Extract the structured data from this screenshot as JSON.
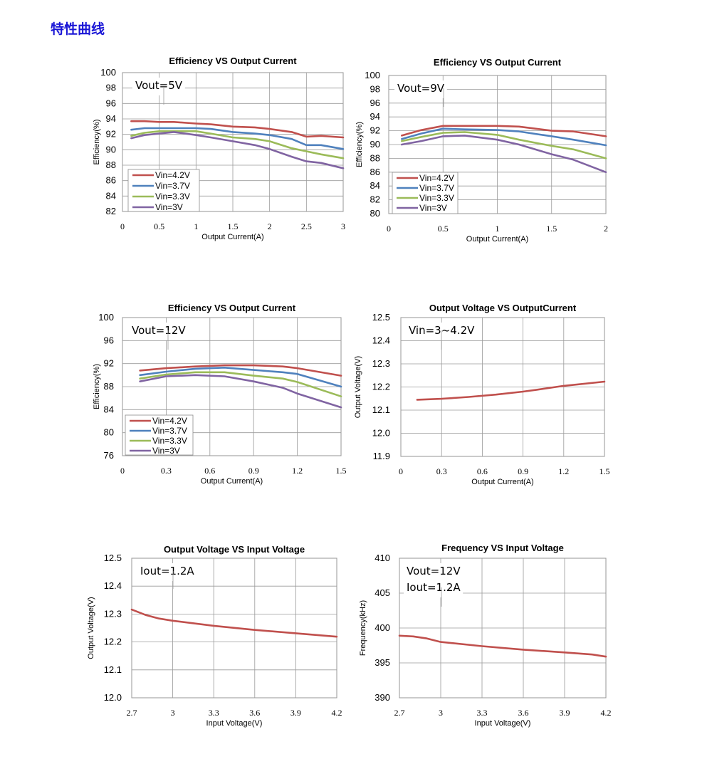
{
  "page": {
    "title": "特性曲线"
  },
  "colors": {
    "Vin=4.2V": "#c0504d",
    "Vin=3.7V": "#4f81bd",
    "Vin=3.3V": "#9bbb59",
    "Vin=3V": "#8064a2",
    "single": "#c0504d"
  },
  "chart_data": [
    {
      "type": "line",
      "title": "Efficiency VS Output Current",
      "xlabel": "Output Current(A)",
      "ylabel": "Efficiency(%)",
      "annotation": [
        "Vout=5V"
      ],
      "xlim": [
        0,
        3
      ],
      "ylim": [
        82,
        100
      ],
      "xticks": [
        0,
        0.5,
        1,
        1.5,
        2,
        2.5,
        3
      ],
      "yticks": [
        82,
        84,
        86,
        88,
        90,
        92,
        94,
        96,
        98,
        100
      ],
      "legend": "bottom-left",
      "series": [
        {
          "name": "Vin=4.2V",
          "x": [
            0.12,
            0.3,
            0.5,
            0.7,
            1.0,
            1.2,
            1.5,
            1.8,
            2.0,
            2.3,
            2.5,
            2.7,
            3.0
          ],
          "y": [
            93.7,
            93.7,
            93.6,
            93.6,
            93.4,
            93.3,
            93.0,
            92.9,
            92.7,
            92.3,
            91.7,
            91.8,
            91.6
          ]
        },
        {
          "name": "Vin=3.7V",
          "x": [
            0.12,
            0.3,
            0.5,
            0.7,
            1.0,
            1.2,
            1.5,
            1.8,
            2.0,
            2.3,
            2.5,
            2.7,
            3.0
          ],
          "y": [
            92.6,
            92.8,
            92.8,
            92.8,
            92.8,
            92.7,
            92.3,
            92.1,
            91.9,
            91.4,
            90.6,
            90.6,
            90.1
          ]
        },
        {
          "name": "Vin=3.3V",
          "x": [
            0.12,
            0.3,
            0.5,
            0.7,
            1.0,
            1.2,
            1.5,
            1.8,
            2.0,
            2.3,
            2.5,
            2.7,
            3.0
          ],
          "y": [
            91.8,
            92.2,
            92.4,
            92.4,
            92.4,
            92.1,
            91.6,
            91.4,
            91.1,
            90.2,
            89.8,
            89.4,
            88.9
          ]
        },
        {
          "name": "Vin=3V",
          "x": [
            0.12,
            0.3,
            0.5,
            0.7,
            1.0,
            1.2,
            1.5,
            1.8,
            2.0,
            2.3,
            2.5,
            2.7,
            3.0
          ],
          "y": [
            91.5,
            91.9,
            92.1,
            92.3,
            91.9,
            91.6,
            91.1,
            90.6,
            90.1,
            89.1,
            88.5,
            88.3,
            87.6
          ]
        }
      ]
    },
    {
      "type": "line",
      "title": "Efficiency VS Output Current",
      "xlabel": "Output Current(A)",
      "ylabel": "Efficiency(%)",
      "annotation": [
        "Vout=9V"
      ],
      "xlim": [
        0,
        2
      ],
      "ylim": [
        80,
        100
      ],
      "xticks": [
        0,
        0.5,
        1,
        1.5,
        2
      ],
      "yticks": [
        80,
        82,
        84,
        86,
        88,
        90,
        92,
        94,
        96,
        98,
        100
      ],
      "legend": "bottom-left",
      "series": [
        {
          "name": "Vin=4.2V",
          "x": [
            0.12,
            0.3,
            0.5,
            0.7,
            1.0,
            1.2,
            1.5,
            1.7,
            2.0
          ],
          "y": [
            91.3,
            92.1,
            92.7,
            92.7,
            92.7,
            92.6,
            92.0,
            91.9,
            91.2
          ]
        },
        {
          "name": "Vin=3.7V",
          "x": [
            0.12,
            0.3,
            0.5,
            0.7,
            1.0,
            1.2,
            1.5,
            1.7,
            2.0
          ],
          "y": [
            90.8,
            91.6,
            92.3,
            92.2,
            92.1,
            91.9,
            91.2,
            90.7,
            89.9
          ]
        },
        {
          "name": "Vin=3.3V",
          "x": [
            0.12,
            0.3,
            0.5,
            0.7,
            1.0,
            1.2,
            1.5,
            1.7,
            2.0
          ],
          "y": [
            90.5,
            91.1,
            91.7,
            91.8,
            91.4,
            90.7,
            89.8,
            89.3,
            88.0
          ]
        },
        {
          "name": "Vin=3V",
          "x": [
            0.12,
            0.3,
            0.5,
            0.7,
            1.0,
            1.2,
            1.5,
            1.7,
            2.0
          ],
          "y": [
            90.0,
            90.5,
            91.2,
            91.3,
            90.7,
            90.0,
            88.6,
            87.8,
            86.0
          ]
        }
      ]
    },
    {
      "type": "line",
      "title": "Efficiency VS Output Current",
      "xlabel": "Output Current(A)",
      "ylabel": "Efficiency(%)",
      "annotation": [
        "Vout=12V"
      ],
      "xlim": [
        0,
        1.5
      ],
      "ylim": [
        76,
        100
      ],
      "xticks": [
        0,
        0.3,
        0.6,
        0.9,
        1.2,
        1.5
      ],
      "xtick_labels": [
        "0",
        "0.3",
        "0.6",
        "0.9",
        "1.2",
        "1.5"
      ],
      "yticks": [
        76,
        80,
        84,
        88,
        92,
        96,
        100
      ],
      "yticks_labels": [
        "76",
        "80",
        "84",
        "88",
        "92",
        "96",
        "100"
      ],
      "legend": "bottom-left",
      "series": [
        {
          "name": "Vin=4.2V",
          "x": [
            0.12,
            0.3,
            0.5,
            0.7,
            0.9,
            1.1,
            1.2,
            1.5
          ],
          "y": [
            90.8,
            91.2,
            91.5,
            91.7,
            91.7,
            91.5,
            91.2,
            89.9
          ]
        },
        {
          "name": "Vin=3.7V",
          "x": [
            0.12,
            0.3,
            0.5,
            0.7,
            0.9,
            1.1,
            1.2,
            1.5
          ],
          "y": [
            90.0,
            90.6,
            91.1,
            91.3,
            90.9,
            90.5,
            90.2,
            88.0
          ]
        },
        {
          "name": "Vin=3.3V",
          "x": [
            0.12,
            0.3,
            0.5,
            0.7,
            0.9,
            1.1,
            1.2,
            1.5
          ],
          "y": [
            89.4,
            90.1,
            90.5,
            90.5,
            89.9,
            89.4,
            88.8,
            86.3
          ]
        },
        {
          "name": "Vin=3V",
          "x": [
            0.12,
            0.3,
            0.5,
            0.7,
            0.9,
            1.1,
            1.2,
            1.5
          ],
          "y": [
            88.9,
            89.8,
            90.0,
            89.8,
            88.9,
            87.8,
            86.8,
            84.4
          ]
        }
      ]
    },
    {
      "type": "line",
      "title": "Output Voltage VS OutputCurrent",
      "xlabel": "Output Current(A)",
      "ylabel": "Output Voltage(V)",
      "annotation": [
        "Vin=3~4.2V"
      ],
      "xlim": [
        0,
        1.5
      ],
      "ylim": [
        11.9,
        12.5
      ],
      "xticks": [
        0,
        0.3,
        0.6,
        0.9,
        1.2,
        1.5
      ],
      "yticks": [
        11.9,
        12.0,
        12.1,
        12.2,
        12.3,
        12.4,
        12.5
      ],
      "xtick_labels": [
        "0",
        "0.3",
        "0.6",
        "0.9",
        "1.2",
        "1.5"
      ],
      "ytick_labels": [
        "11.9",
        "12.0",
        "12.1",
        "12.2",
        "12.3",
        "12.4",
        "12.5"
      ],
      "series": [
        {
          "x": [
            0.12,
            0.3,
            0.5,
            0.7,
            0.9,
            1.0,
            1.2,
            1.5
          ],
          "y": [
            12.145,
            12.149,
            12.157,
            12.167,
            12.18,
            12.188,
            12.205,
            12.223
          ]
        }
      ]
    },
    {
      "type": "line",
      "title": "Output Voltage VS Input Voltage",
      "xlabel": "Input Voltage(V)",
      "ylabel": "Output Voltage(V)",
      "annotation": [
        "Iout=1.2A"
      ],
      "xlim": [
        2.7,
        4.2
      ],
      "ylim": [
        12.0,
        12.5
      ],
      "xticks": [
        2.7,
        3.0,
        3.3,
        3.6,
        3.9,
        4.2
      ],
      "xtick_labels": [
        "2.7",
        "3",
        "3.3",
        "3.6",
        "3.9",
        "4.2"
      ],
      "yticks": [
        12.0,
        12.1,
        12.2,
        12.3,
        12.4,
        12.5
      ],
      "ytick_labels": [
        "12.0",
        "12.1",
        "12.2",
        "12.3",
        "12.4",
        "12.5"
      ],
      "series": [
        {
          "x": [
            2.7,
            2.8,
            2.9,
            3.0,
            3.3,
            3.6,
            3.9,
            4.2
          ],
          "y": [
            12.316,
            12.297,
            12.284,
            12.276,
            12.258,
            12.243,
            12.231,
            12.219
          ]
        }
      ]
    },
    {
      "type": "line",
      "title": "Frequency VS Input Voltage",
      "xlabel": "Input Voltage(V)",
      "ylabel": "Frequency(kHz)",
      "annotation": [
        "Vout=12V",
        "Iout=1.2A"
      ],
      "xlim": [
        2.7,
        4.2
      ],
      "ylim": [
        390,
        410
      ],
      "xticks": [
        2.7,
        3.0,
        3.3,
        3.6,
        3.9,
        4.2
      ],
      "xtick_labels": [
        "2.7",
        "3",
        "3.3",
        "3.6",
        "3.9",
        "4.2"
      ],
      "yticks": [
        390,
        395,
        400,
        405,
        410
      ],
      "series": [
        {
          "x": [
            2.7,
            2.8,
            2.9,
            3.0,
            3.3,
            3.6,
            3.9,
            4.1,
            4.2
          ],
          "y": [
            398.9,
            398.8,
            398.5,
            398.0,
            397.4,
            396.9,
            396.5,
            396.2,
            395.9
          ]
        }
      ]
    }
  ]
}
